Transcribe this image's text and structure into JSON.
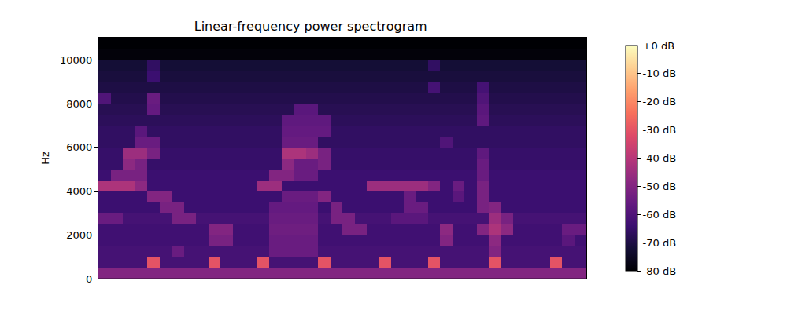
{
  "chart_data": {
    "type": "heatmap",
    "title": "Linear-frequency power spectrogram",
    "y_label": "Hz",
    "tick_labels": "y",
    "color": "magma",
    "x": [
      0,
      1,
      2,
      3,
      4,
      5,
      6,
      7,
      8,
      9,
      10,
      11,
      12,
      13,
      14,
      15,
      16,
      17,
      18,
      19,
      20,
      21,
      22,
      23,
      24,
      25,
      26,
      27,
      28,
      29,
      30,
      31,
      32,
      33,
      34,
      35,
      36,
      37,
      38,
      39
    ],
    "y": [
      250,
      750,
      1250,
      1750,
      2250,
      2750,
      3250,
      3750,
      4250,
      4750,
      5250,
      5750,
      6250,
      6750,
      7250,
      7750,
      8250,
      8750,
      9250,
      9750,
      10250,
      10750
    ],
    "xlim": [
      -0.5,
      39.5
    ],
    "ylim": [
      0,
      11025
    ],
    "yticks": [
      0,
      2000,
      4000,
      6000,
      8000,
      10000
    ],
    "zlim": [
      -80,
      0
    ],
    "zticks": [
      {
        "value": 0,
        "label": "+0 dB"
      },
      {
        "value": -10,
        "label": "-10 dB"
      },
      {
        "value": -20,
        "label": "-20 dB"
      },
      {
        "value": -30,
        "label": "-30 dB"
      },
      {
        "value": -40,
        "label": "-40 dB"
      },
      {
        "value": -50,
        "label": "-50 dB"
      },
      {
        "value": -60,
        "label": "-60 dB"
      },
      {
        "value": -70,
        "label": "-70 dB"
      },
      {
        "value": -80,
        "label": "-80 dB"
      }
    ],
    "z": [
      [
        -50,
        -50,
        -50,
        -50,
        -50,
        -50,
        -50,
        -50,
        -50,
        -50,
        -50,
        -50,
        -50,
        -50,
        -50,
        -50,
        -50,
        -50,
        -50,
        -50,
        -50,
        -50,
        -50,
        -50,
        -50,
        -50,
        -50,
        -50,
        -50,
        -50,
        -50,
        -50,
        -50,
        -50,
        -50,
        -50,
        -50,
        -50,
        -50,
        -50
      ],
      [
        -62,
        -62,
        -62,
        -62,
        -30,
        -62,
        -62,
        -62,
        -62,
        -30,
        -62,
        -62,
        -62,
        -30,
        -62,
        -62,
        -62,
        -62,
        -30,
        -62,
        -62,
        -62,
        -62,
        -30,
        -62,
        -62,
        -62,
        -30,
        -62,
        -62,
        -62,
        -62,
        -30,
        -62,
        -62,
        -62,
        -62,
        -30,
        -62,
        -62
      ],
      [
        -62,
        -62,
        -62,
        -62,
        -62,
        -62,
        -55,
        -62,
        -62,
        -62,
        -62,
        -62,
        -62,
        -62,
        -55,
        -55,
        -55,
        -55,
        -62,
        -62,
        -62,
        -62,
        -62,
        -62,
        -62,
        -62,
        -62,
        -62,
        -62,
        -62,
        -62,
        -62,
        -50,
        -62,
        -62,
        -62,
        -62,
        -62,
        -62,
        -62
      ],
      [
        -63,
        -63,
        -63,
        -63,
        -63,
        -63,
        -63,
        -63,
        -63,
        -52,
        -52,
        -63,
        -63,
        -63,
        -55,
        -55,
        -55,
        -55,
        -63,
        -63,
        -63,
        -63,
        -63,
        -63,
        -63,
        -63,
        -63,
        -63,
        -50,
        -63,
        -63,
        -63,
        -48,
        -63,
        -63,
        -63,
        -63,
        -63,
        -58,
        -63
      ],
      [
        -63,
        -63,
        -63,
        -63,
        -63,
        -63,
        -63,
        -63,
        -63,
        -50,
        -50,
        -63,
        -63,
        -63,
        -54,
        -54,
        -54,
        -54,
        -63,
        -63,
        -52,
        -52,
        -63,
        -63,
        -63,
        -63,
        -63,
        -63,
        -48,
        -63,
        -63,
        -50,
        -42,
        -48,
        -63,
        -63,
        -63,
        -63,
        -55,
        -55
      ],
      [
        -55,
        -55,
        -62,
        -62,
        -62,
        -62,
        -52,
        -52,
        -62,
        -62,
        -62,
        -62,
        -62,
        -62,
        -55,
        -55,
        -55,
        -55,
        -62,
        -52,
        -52,
        -62,
        -62,
        -62,
        -58,
        -58,
        -58,
        -62,
        -62,
        -62,
        -62,
        -62,
        -45,
        -52,
        -62,
        -62,
        -62,
        -62,
        -62,
        -62
      ],
      [
        -64,
        -64,
        -64,
        -64,
        -64,
        -52,
        -52,
        -64,
        -64,
        -64,
        -64,
        -64,
        -64,
        -64,
        -56,
        -56,
        -56,
        -56,
        -64,
        -52,
        -64,
        -64,
        -64,
        -64,
        -64,
        -55,
        -55,
        -64,
        -64,
        -64,
        -64,
        -52,
        -50,
        -64,
        -64,
        -64,
        -64,
        -64,
        -64,
        -64
      ],
      [
        -64,
        -64,
        -64,
        -64,
        -50,
        -50,
        -64,
        -64,
        -64,
        -64,
        -64,
        -64,
        -64,
        -64,
        -64,
        -55,
        -55,
        -55,
        -50,
        -64,
        -64,
        -64,
        -64,
        -64,
        -64,
        -55,
        -64,
        -64,
        -64,
        -58,
        -64,
        -52,
        -64,
        -64,
        -64,
        -64,
        -64,
        -64,
        -64,
        -64
      ],
      [
        -42,
        -42,
        -42,
        -48,
        -64,
        -64,
        -64,
        -64,
        -64,
        -64,
        -64,
        -64,
        -64,
        -45,
        -45,
        -64,
        -64,
        -64,
        -64,
        -64,
        -64,
        -64,
        -45,
        -45,
        -45,
        -45,
        -45,
        -50,
        -64,
        -55,
        -64,
        -52,
        -64,
        -64,
        -64,
        -64,
        -64,
        -64,
        -64,
        -64
      ],
      [
        -64,
        -52,
        -52,
        -52,
        -64,
        -64,
        -64,
        -64,
        -64,
        -64,
        -64,
        -64,
        -64,
        -64,
        -50,
        -50,
        -55,
        -55,
        -64,
        -64,
        -64,
        -64,
        -64,
        -64,
        -64,
        -64,
        -64,
        -64,
        -64,
        -64,
        -64,
        -55,
        -64,
        -64,
        -64,
        -64,
        -64,
        -64,
        -64,
        -64
      ],
      [
        -65,
        -65,
        -48,
        -52,
        -65,
        -65,
        -65,
        -65,
        -65,
        -65,
        -65,
        -65,
        -65,
        -65,
        -65,
        -48,
        -55,
        -55,
        -52,
        -65,
        -65,
        -65,
        -65,
        -65,
        -65,
        -65,
        -65,
        -65,
        -65,
        -65,
        -65,
        -55,
        -65,
        -65,
        -65,
        -65,
        -65,
        -65,
        -65,
        -65
      ],
      [
        -65,
        -65,
        -45,
        -45,
        -52,
        -65,
        -65,
        -65,
        -65,
        -65,
        -65,
        -65,
        -65,
        -65,
        -65,
        -42,
        -42,
        -45,
        -52,
        -65,
        -65,
        -65,
        -65,
        -65,
        -65,
        -65,
        -65,
        -65,
        -65,
        -65,
        -65,
        -57,
        -65,
        -65,
        -65,
        -65,
        -65,
        -65,
        -65,
        -65
      ],
      [
        -66,
        -66,
        -66,
        -55,
        -55,
        -66,
        -66,
        -66,
        -66,
        -66,
        -66,
        -66,
        -66,
        -66,
        -66,
        -55,
        -55,
        -55,
        -66,
        -66,
        -66,
        -66,
        -66,
        -66,
        -66,
        -66,
        -66,
        -66,
        -60,
        -66,
        -66,
        -66,
        -66,
        -66,
        -66,
        -66,
        -66,
        -66,
        -66,
        -66
      ],
      [
        -66,
        -66,
        -66,
        -58,
        -66,
        -66,
        -66,
        -66,
        -66,
        -66,
        -66,
        -66,
        -66,
        -66,
        -66,
        -56,
        -56,
        -56,
        -56,
        -66,
        -66,
        -66,
        -66,
        -66,
        -66,
        -66,
        -66,
        -66,
        -66,
        -66,
        -66,
        -66,
        -66,
        -66,
        -66,
        -66,
        -66,
        -66,
        -66,
        -66
      ],
      [
        -67,
        -67,
        -67,
        -67,
        -67,
        -67,
        -67,
        -67,
        -67,
        -67,
        -67,
        -67,
        -67,
        -67,
        -67,
        -57,
        -57,
        -57,
        -57,
        -67,
        -67,
        -67,
        -67,
        -67,
        -67,
        -67,
        -67,
        -67,
        -67,
        -67,
        -67,
        -57,
        -67,
        -67,
        -67,
        -67,
        -67,
        -67,
        -67,
        -67
      ],
      [
        -68,
        -68,
        -68,
        -68,
        -56,
        -68,
        -68,
        -68,
        -68,
        -68,
        -68,
        -68,
        -68,
        -68,
        -68,
        -68,
        -58,
        -58,
        -68,
        -68,
        -68,
        -68,
        -68,
        -68,
        -68,
        -68,
        -68,
        -68,
        -68,
        -68,
        -68,
        -58,
        -68,
        -68,
        -68,
        -68,
        -68,
        -68,
        -68,
        -68
      ],
      [
        -60,
        -69,
        -69,
        -69,
        -55,
        -69,
        -69,
        -69,
        -69,
        -69,
        -69,
        -69,
        -69,
        -69,
        -69,
        -69,
        -69,
        -69,
        -69,
        -69,
        -69,
        -69,
        -69,
        -69,
        -69,
        -69,
        -69,
        -69,
        -69,
        -69,
        -69,
        -60,
        -69,
        -69,
        -69,
        -69,
        -69,
        -69,
        -69,
        -69
      ],
      [
        -70,
        -70,
        -70,
        -70,
        -70,
        -70,
        -70,
        -70,
        -70,
        -70,
        -70,
        -70,
        -70,
        -70,
        -70,
        -70,
        -70,
        -70,
        -70,
        -70,
        -70,
        -70,
        -70,
        -70,
        -70,
        -70,
        -70,
        -62,
        -70,
        -70,
        -70,
        -62,
        -70,
        -70,
        -70,
        -70,
        -70,
        -70,
        -70,
        -70
      ],
      [
        -71,
        -71,
        -71,
        -71,
        -64,
        -71,
        -71,
        -71,
        -71,
        -71,
        -71,
        -71,
        -71,
        -71,
        -71,
        -71,
        -71,
        -71,
        -71,
        -71,
        -71,
        -71,
        -71,
        -71,
        -71,
        -71,
        -71,
        -71,
        -71,
        -71,
        -71,
        -71,
        -71,
        -71,
        -71,
        -71,
        -71,
        -71,
        -71,
        -71
      ],
      [
        -72,
        -72,
        -72,
        -72,
        -66,
        -72,
        -72,
        -72,
        -72,
        -72,
        -72,
        -72,
        -72,
        -72,
        -72,
        -72,
        -72,
        -72,
        -72,
        -72,
        -72,
        -72,
        -72,
        -72,
        -72,
        -72,
        -72,
        -66,
        -72,
        -72,
        -72,
        -72,
        -72,
        -72,
        -72,
        -72,
        -72,
        -72,
        -72,
        -72
      ],
      [
        -79,
        -79,
        -79,
        -79,
        -79,
        -79,
        -79,
        -79,
        -79,
        -79,
        -79,
        -79,
        -79,
        -79,
        -79,
        -79,
        -79,
        -79,
        -79,
        -79,
        -79,
        -79,
        -79,
        -79,
        -79,
        -79,
        -79,
        -79,
        -79,
        -79,
        -79,
        -79,
        -79,
        -79,
        -79,
        -79,
        -79,
        -79,
        -79,
        -79
      ],
      [
        -80,
        -80,
        -80,
        -80,
        -80,
        -80,
        -80,
        -80,
        -80,
        -80,
        -80,
        -80,
        -80,
        -80,
        -80,
        -80,
        -80,
        -80,
        -80,
        -80,
        -80,
        -80,
        -80,
        -80,
        -80,
        -80,
        -80,
        -80,
        -80,
        -80,
        -80,
        -80,
        -80,
        -80,
        -80,
        -80,
        -80,
        -80,
        -80,
        -80
      ]
    ]
  }
}
